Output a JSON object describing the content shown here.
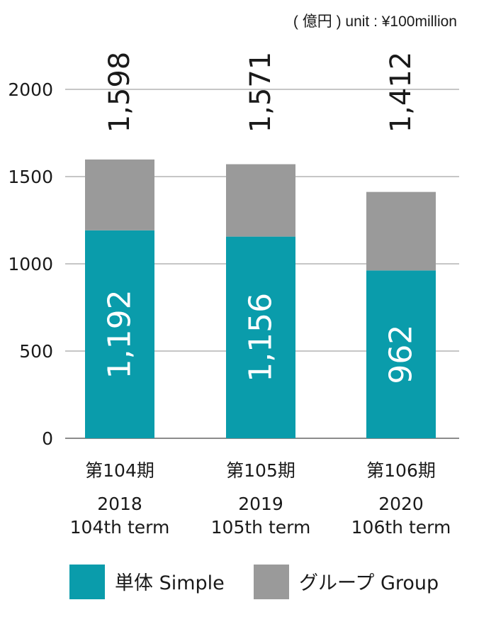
{
  "unit_note": "( 億円 ) unit : ¥100million",
  "chart_data": {
    "type": "bar",
    "stacked": true,
    "categories": [
      {
        "jp": "第104期",
        "year": "2018",
        "term": "104th term"
      },
      {
        "jp": "第105期",
        "year": "2019",
        "term": "105th term"
      },
      {
        "jp": "第106期",
        "year": "2020",
        "term": "106th term"
      }
    ],
    "series": [
      {
        "name": "単体 Simple",
        "values": [
          1192,
          1156,
          962
        ],
        "color": "#0a9cab",
        "value_labels": [
          "1,192",
          "1,156",
          "962"
        ]
      },
      {
        "name": "グループ Group",
        "values": [
          406,
          415,
          450
        ],
        "color": "#9a9a9a"
      }
    ],
    "totals": [
      "1,598",
      "1,571",
      "1,412"
    ],
    "yticks": [
      0,
      500,
      1000,
      1500,
      2000
    ],
    "ylim": [
      0,
      2000
    ],
    "grid": true,
    "legend_position": "bottom"
  }
}
